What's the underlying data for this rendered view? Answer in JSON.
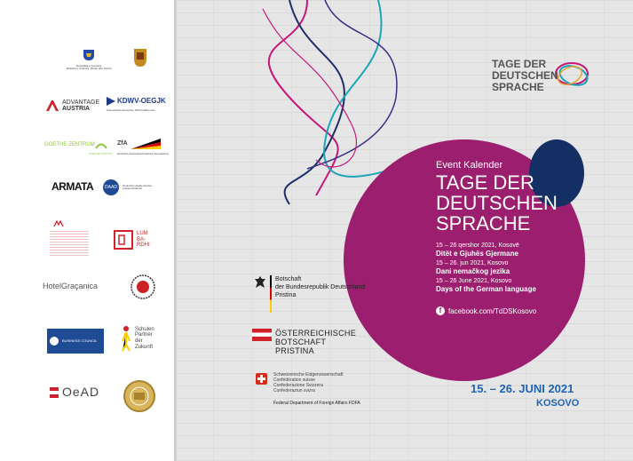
{
  "logos": {
    "kosovo_caption": "Republika e Kosovës\nMinistria e Kulturës, Rinisë dhe Sportit",
    "advantage": "ADVANTAGE",
    "austria": "AUSTRIA",
    "kdwv": "KDWV-OEGJK",
    "kdwv_sub": "Kosovarisch-Deutscher Wirtschaftsverein",
    "goethe": "GOETHE-ZENTRUM",
    "goethe_sub": "GOETHE INSTITUT",
    "zfa": "ZfA",
    "zfa_sub": "Deutsche Auslandsschularbeit International",
    "armata": "ARMATA",
    "daad": "DAAD",
    "daad_sub": "Deutscher Akademischer Austauschdienst",
    "lumbardhi": "LUM BA- RDHI",
    "hotel": "HotelGraçanica",
    "bcc": "BUSINESS COUNCIL",
    "schulen": "Schulen Partner der Zukunft",
    "oead": "OeAD"
  },
  "brand": {
    "line1": "TAGE DER",
    "line2": "DEUTSCHEN",
    "line3": "SPRACHE"
  },
  "main": {
    "eyebrow": "Event Kalender",
    "title1": "TAGE DER",
    "title2": "DEUTSCHEN",
    "title3": "SPRACHE",
    "events": [
      {
        "date": "15 – 26 qershor 2021, Kosovë",
        "name": "Ditët e Gjuhës Gjermane"
      },
      {
        "date": "15 – 26. jun 2021, Kosovo",
        "name": "Dani nemačkog jezika"
      },
      {
        "date": "15 – 26 June 2021, Kosovo",
        "name": "Days of the German language"
      }
    ],
    "facebook": "facebook.com/TdDSKosovo",
    "dates": "15. – 26. JUNI 2021",
    "location": "KOSOVO"
  },
  "embassies": {
    "de1": "Botschaft",
    "de2": "der Bundesrepublik Deutschland",
    "de3": "Pristina",
    "at1": "ÖSTERREICHISCHE",
    "at2": "BOTSCHAFT",
    "at3": "PRISTINA",
    "ch1": "Schweizerische Eidgenossenschaft",
    "ch2": "Confédération suisse",
    "ch3": "Confederazione Svizzera",
    "ch4": "Confederaziun svizra",
    "ch_dept": "Federal Department of Foreign Affairs FDFA"
  },
  "colors": {
    "magenta": "#9c1f6f",
    "navy": "#142f63",
    "teal": "#1aa6b7",
    "blue_text": "#1e64b4"
  }
}
